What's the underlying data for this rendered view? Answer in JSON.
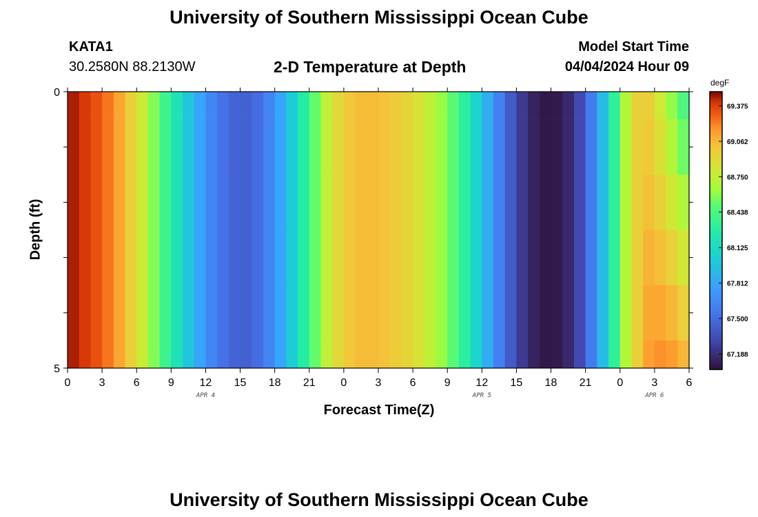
{
  "header": {
    "title": "University of Southern Mississippi Ocean Cube",
    "station": "KATA1",
    "coords": "30.2580N  88.2130W",
    "chart_title": "2-D Temperature at Depth",
    "start_label": "Model Start Time",
    "start_value": "04/04/2024 Hour 09"
  },
  "footer": {
    "title": "University of Southern Mississippi Ocean Cube"
  },
  "chart_data": {
    "type": "heatmap",
    "title": "2-D Temperature at Depth",
    "xlabel": "Forecast Time(Z)",
    "ylabel": "Depth (ft)",
    "units": "degF",
    "x_tick_labels": [
      "0",
      "3",
      "6",
      "9",
      "12",
      "15",
      "18",
      "21",
      "0",
      "3",
      "6",
      "9",
      "12",
      "15",
      "18",
      "21",
      "0",
      "3",
      "6"
    ],
    "date_labels": [
      {
        "label": "APR 4",
        "hour": 12
      },
      {
        "label": "APR 5",
        "hour": 36
      },
      {
        "label": "APR 6",
        "hour": 51
      }
    ],
    "x_range_hours": [
      0,
      54
    ],
    "y_range_ft": [
      0,
      5
    ],
    "y_tick_labels": [
      "0",
      "5"
    ],
    "colorbar": {
      "range": [
        67.05,
        69.5
      ],
      "ticks": [
        "69.375",
        "69.062",
        "68.750",
        "68.438",
        "68.125",
        "67.812",
        "67.500",
        "67.188"
      ],
      "tick_values": [
        69.375,
        69.062,
        68.75,
        68.438,
        68.125,
        67.812,
        67.5,
        67.188
      ]
    },
    "time_step_hours": 1,
    "depth_levels_ft": [
      0,
      0.5,
      1.5,
      2.5,
      3.5,
      4.5,
      5.0
    ],
    "surface_profile": [
      69.45,
      69.4,
      69.33,
      69.24,
      69.12,
      68.96,
      68.78,
      68.58,
      68.38,
      68.18,
      67.98,
      67.8,
      67.64,
      67.52,
      67.45,
      67.44,
      67.5,
      67.62,
      67.8,
      68.02,
      68.28,
      68.52,
      68.74,
      68.9,
      69.0,
      69.04,
      69.04,
      69.02,
      68.98,
      68.93,
      68.85,
      68.75,
      68.62,
      68.48,
      68.3,
      68.08,
      67.84,
      67.6,
      67.4,
      67.24,
      67.13,
      67.08,
      67.09,
      67.16,
      67.32,
      67.58,
      67.92,
      68.32,
      68.7,
      68.95,
      68.95,
      68.78,
      68.58,
      68.4,
      68.28
    ],
    "bottom_profile": [
      69.45,
      69.4,
      69.33,
      69.24,
      69.12,
      68.96,
      68.78,
      68.58,
      68.38,
      68.18,
      67.98,
      67.8,
      67.64,
      67.52,
      67.45,
      67.44,
      67.5,
      67.62,
      67.8,
      68.02,
      68.28,
      68.52,
      68.74,
      68.9,
      69.0,
      69.04,
      69.04,
      69.02,
      68.98,
      68.93,
      68.85,
      68.75,
      68.62,
      68.48,
      68.3,
      68.08,
      67.84,
      67.6,
      67.4,
      67.24,
      67.13,
      67.08,
      67.09,
      67.16,
      67.32,
      67.58,
      67.92,
      68.32,
      68.7,
      68.95,
      69.15,
      69.2,
      69.18,
      69.1,
      69.0
    ]
  }
}
